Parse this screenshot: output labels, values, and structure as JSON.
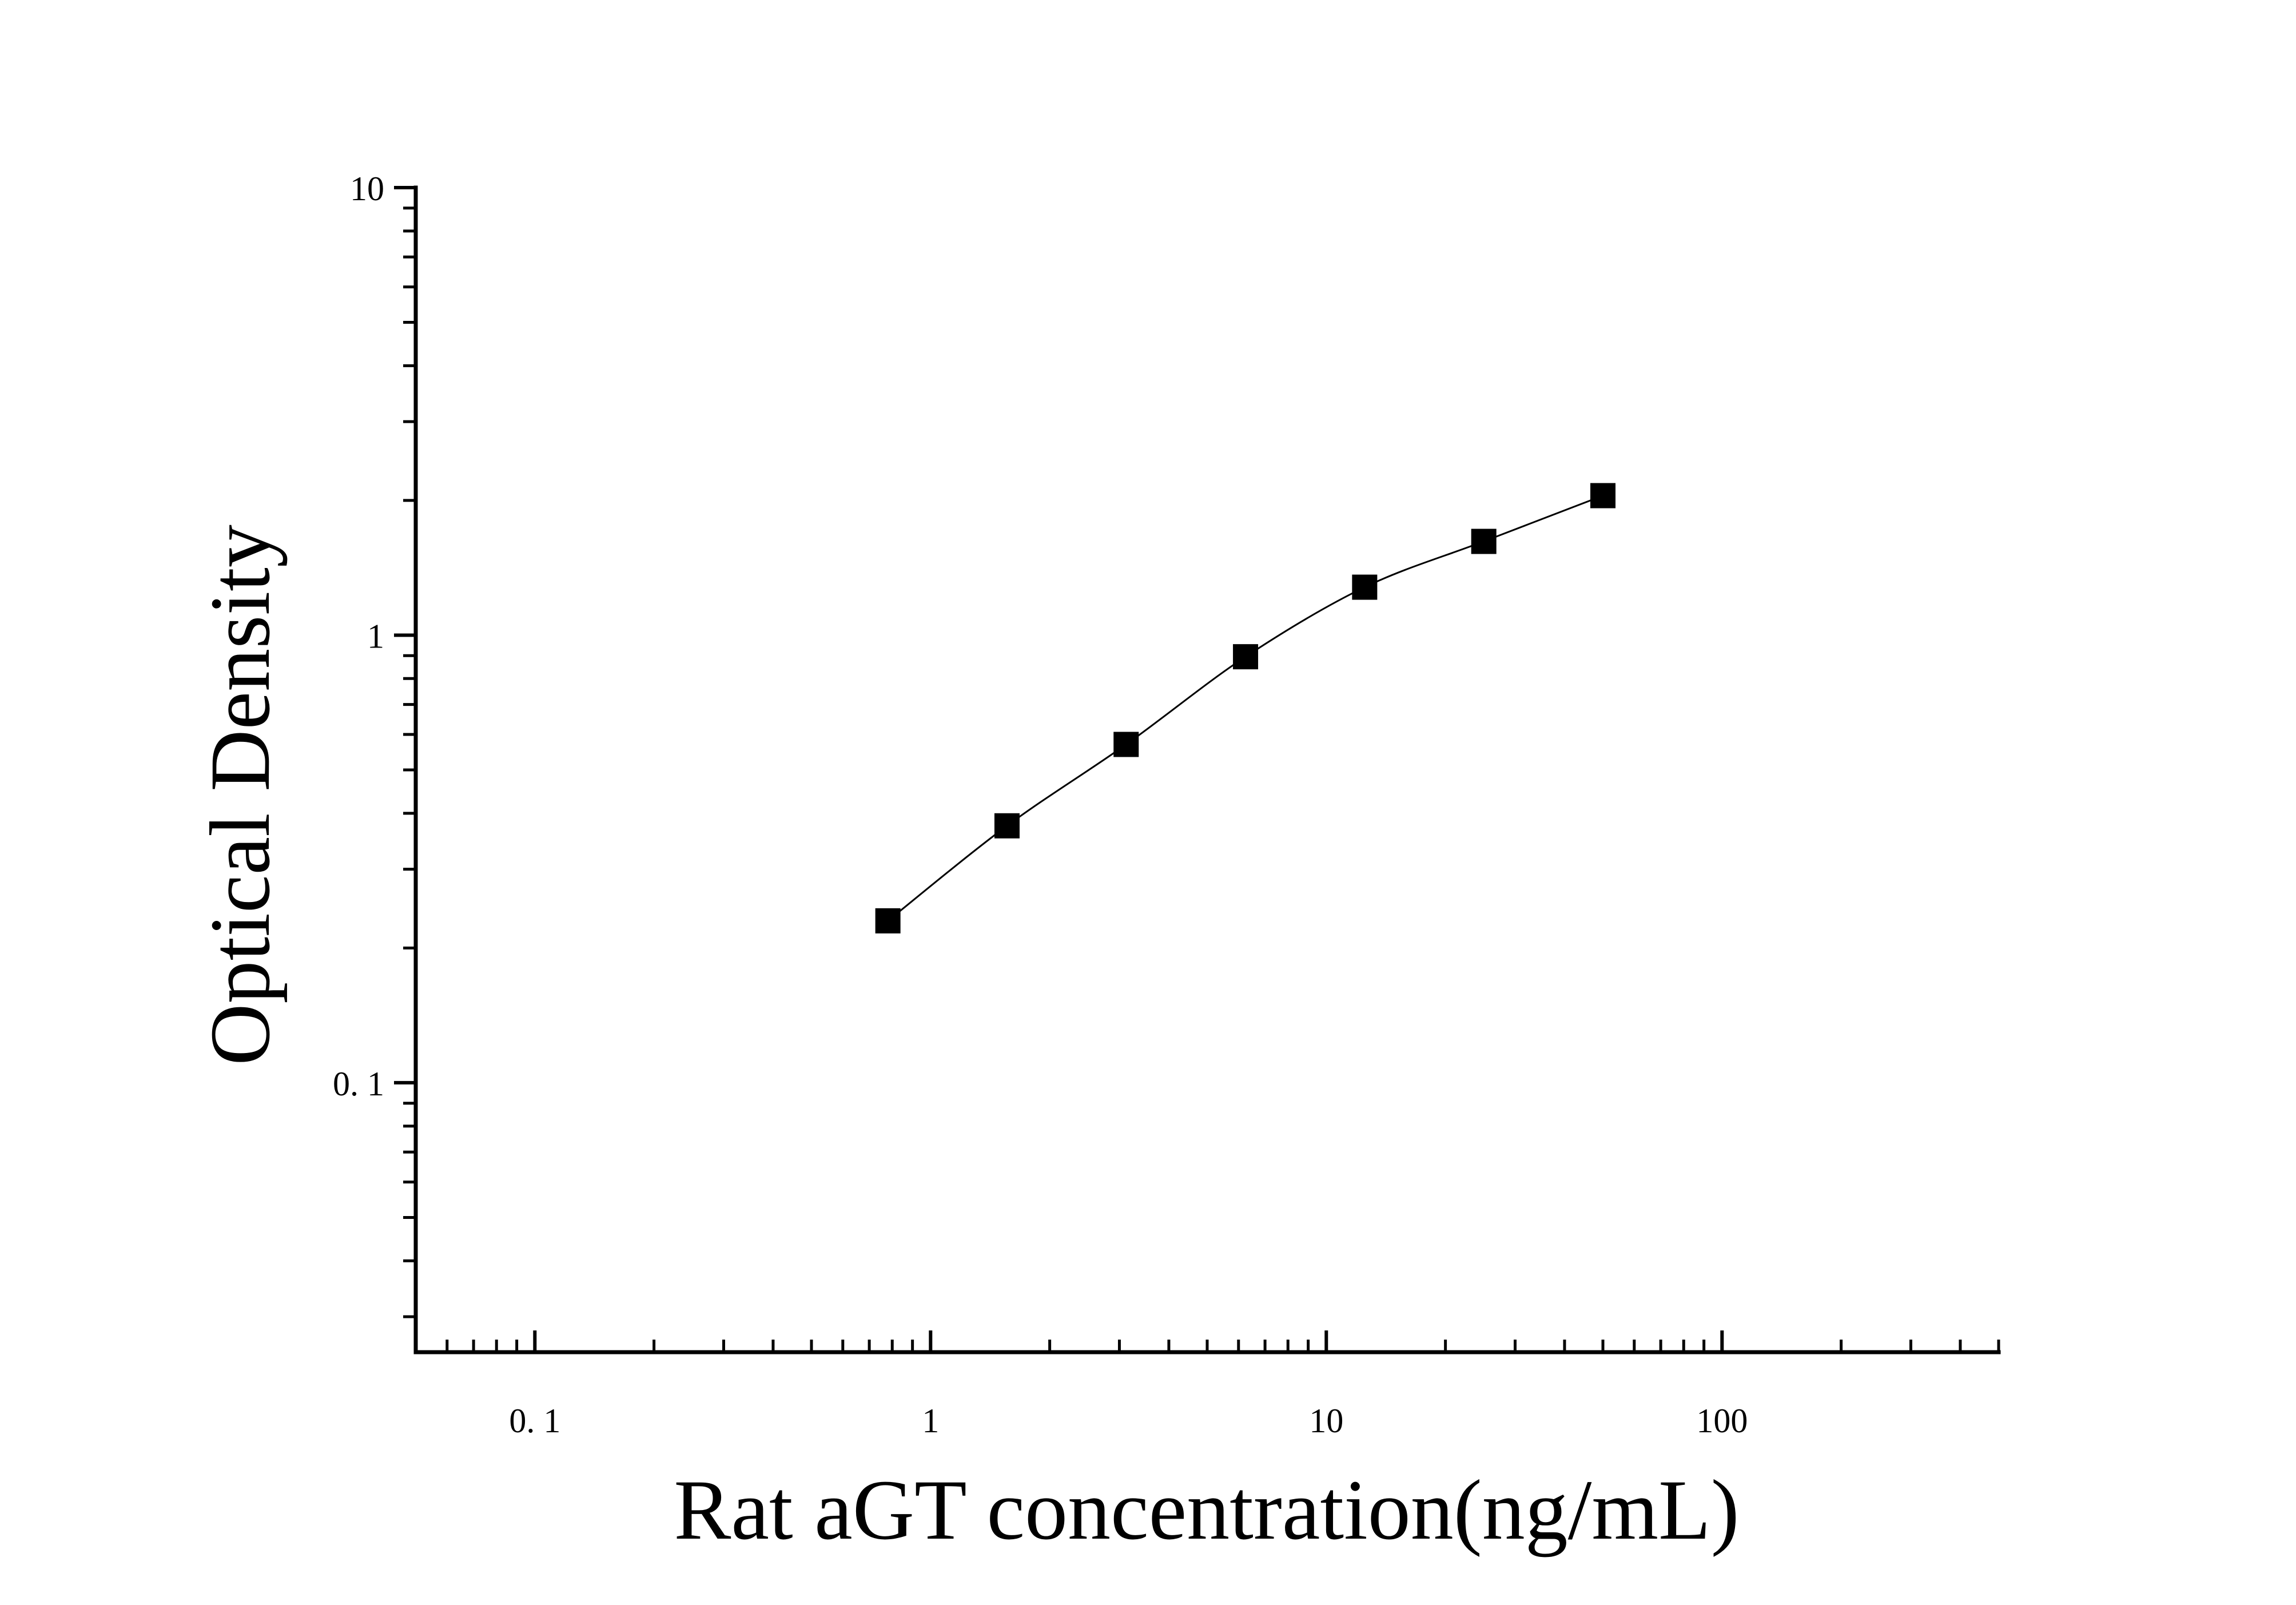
{
  "chart_data": {
    "type": "scatter",
    "xlabel": "Rat aGT concentration(ng/mL)",
    "ylabel": "Optical Density",
    "xscale": "log",
    "yscale": "log",
    "xlim": [
      0.05,
      500
    ],
    "ylim": [
      0.025,
      10
    ],
    "x_ticks": [
      0.1,
      1,
      10,
      100
    ],
    "x_tick_labels": [
      "0. 1",
      "1",
      "10",
      "100"
    ],
    "y_ticks": [
      0.1,
      1,
      10
    ],
    "y_tick_labels": [
      "0. 1",
      "1",
      "10"
    ],
    "grid": false,
    "legend": "none",
    "fit_curve": true,
    "series": [
      {
        "marker": "square",
        "color": "#000000",
        "x": [
          0.78,
          1.56,
          3.12,
          6.25,
          12.5,
          25,
          50
        ],
        "y": [
          0.23,
          0.375,
          0.57,
          0.895,
          1.28,
          1.62,
          2.05
        ]
      }
    ]
  }
}
